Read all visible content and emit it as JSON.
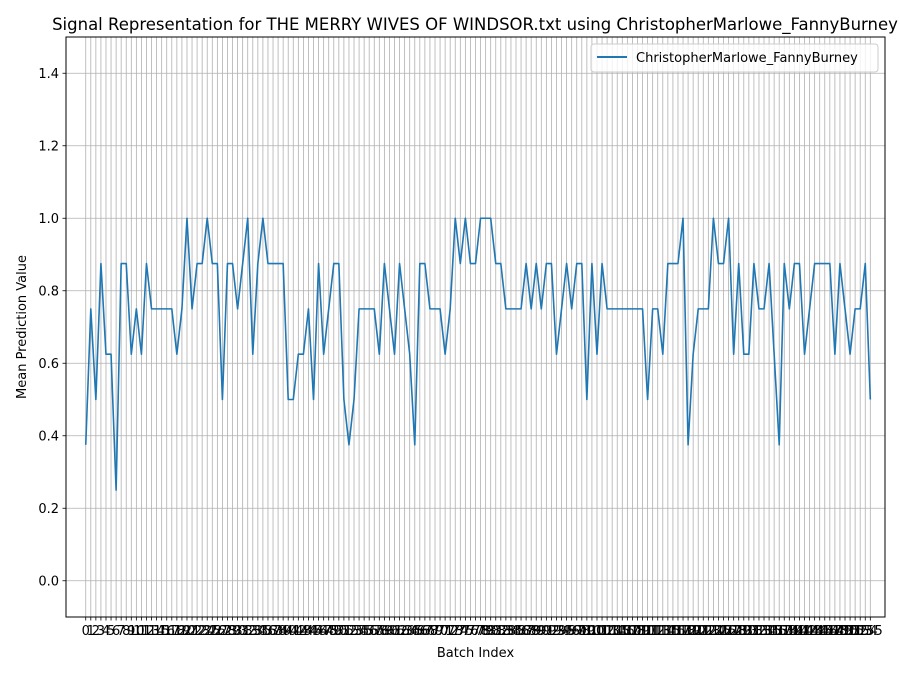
{
  "chart_data": {
    "type": "line",
    "title": "Signal Representation for THE MERRY WIVES OF WINDSOR.txt using ChristopherMarlowe_FannyBurney",
    "xlabel": "Batch Index",
    "ylabel": "Mean Prediction Value",
    "xlim": [
      -3.9,
      157.9
    ],
    "ylim": [
      -0.1,
      1.5
    ],
    "yticks": [
      0.0,
      0.2,
      0.4,
      0.6,
      0.8,
      1.0,
      1.2,
      1.4
    ],
    "ytick_labels": [
      "0.0",
      "0.2",
      "0.4",
      "0.6",
      "0.8",
      "1.0",
      "1.2",
      "1.4"
    ],
    "grid": true,
    "legend_position": "top-right",
    "series": [
      {
        "name": "ChristopherMarlowe_FannyBurney",
        "color": "#1f77b4",
        "x_start": 0,
        "values": [
          0.375,
          0.75,
          0.5,
          0.875,
          0.625,
          0.625,
          0.25,
          0.875,
          0.875,
          0.625,
          0.75,
          0.625,
          0.875,
          0.75,
          0.75,
          0.75,
          0.75,
          0.75,
          0.625,
          0.75,
          1.0,
          0.75,
          0.875,
          0.875,
          1.0,
          0.875,
          0.875,
          0.5,
          0.875,
          0.875,
          0.75,
          0.875,
          1.0,
          0.625,
          0.875,
          1.0,
          0.875,
          0.875,
          0.875,
          0.875,
          0.5,
          0.5,
          0.625,
          0.625,
          0.75,
          0.5,
          0.875,
          0.625,
          0.75,
          0.875,
          0.875,
          0.5,
          0.375,
          0.5,
          0.75,
          0.75,
          0.75,
          0.75,
          0.625,
          0.875,
          0.75,
          0.625,
          0.875,
          0.75,
          0.625,
          0.375,
          0.875,
          0.875,
          0.75,
          0.75,
          0.75,
          0.625,
          0.75,
          1.0,
          0.875,
          1.0,
          0.875,
          0.875,
          1.0,
          1.0,
          1.0,
          0.875,
          0.875,
          0.75,
          0.75,
          0.75,
          0.75,
          0.875,
          0.75,
          0.875,
          0.75,
          0.875,
          0.875,
          0.625,
          0.75,
          0.875,
          0.75,
          0.875,
          0.875,
          0.5,
          0.875,
          0.625,
          0.875,
          0.75,
          0.75,
          0.75,
          0.75,
          0.75,
          0.75,
          0.75,
          0.75,
          0.5,
          0.75,
          0.75,
          0.625,
          0.875,
          0.875,
          0.875,
          1.0,
          0.375,
          0.625,
          0.75,
          0.75,
          0.75,
          1.0,
          0.875,
          0.875,
          1.0,
          0.625,
          0.875,
          0.625,
          0.625,
          0.875,
          0.75,
          0.75,
          0.875,
          0.625,
          0.375,
          0.875,
          0.75,
          0.875,
          0.875,
          0.625,
          0.75,
          0.875,
          0.875,
          0.875,
          0.875,
          0.625,
          0.875,
          0.75,
          0.625,
          0.75,
          0.75,
          0.875,
          0.5
        ]
      }
    ]
  }
}
